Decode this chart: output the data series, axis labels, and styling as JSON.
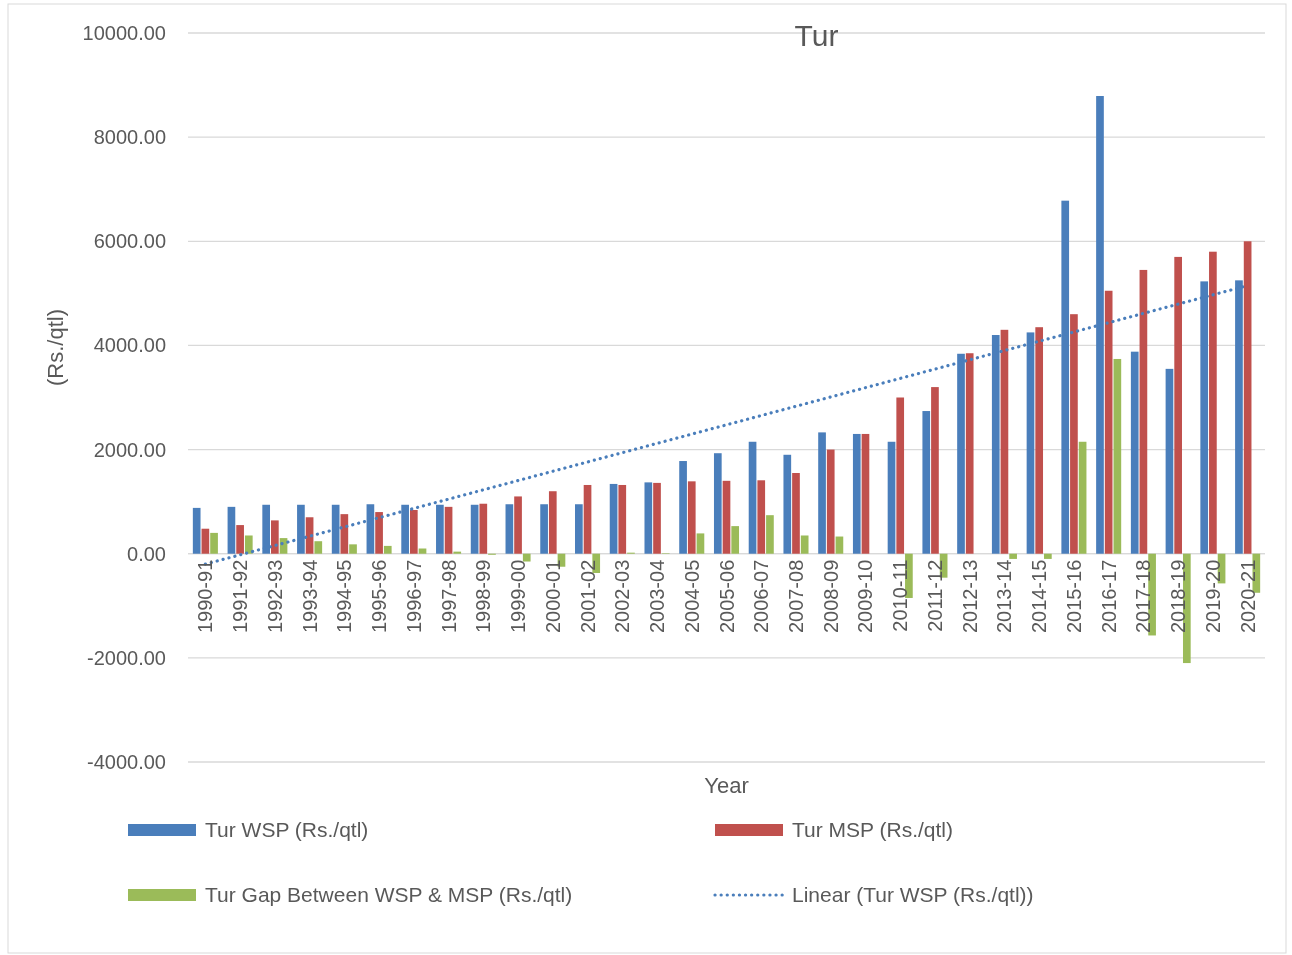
{
  "chart_data": {
    "type": "bar",
    "title": "Tur",
    "xlabel": "Year",
    "ylabel": "(Rs./qtl)",
    "categories": [
      "1990-91",
      "1991-92",
      "1992-93",
      "1993-94",
      "1994-95",
      "1995-96",
      "1996-97",
      "1997-98",
      "1998-99",
      "1999-00",
      "2000-01",
      "2001-02",
      "2002-03",
      "2003-04",
      "2004-05",
      "2005-06",
      "2006-07",
      "2007-08",
      "2008-09",
      "2009-10",
      "2010-11",
      "2011-12",
      "2012-13",
      "2013-14",
      "2014-15",
      "2015-16",
      "2016-17",
      "2017-18",
      "2018-19",
      "2019-20",
      "2020-21"
    ],
    "series": [
      {
        "name": "Tur WSP (Rs./qtl)",
        "color": "#4a7ebb",
        "values": [
          880,
          900,
          940,
          940,
          940,
          950,
          940,
          940,
          940,
          950,
          950,
          950,
          1340,
          1370,
          1780,
          1930,
          2150,
          1900,
          2330,
          2300,
          2150,
          2740,
          3840,
          4200,
          4250,
          6780,
          8790,
          3880,
          3550,
          5230,
          5250
        ]
      },
      {
        "name": "Tur MSP (Rs./qtl)",
        "color": "#c0504d",
        "values": [
          480,
          550,
          640,
          700,
          760,
          800,
          840,
          900,
          960,
          1100,
          1200,
          1320,
          1320,
          1360,
          1390,
          1400,
          1410,
          1550,
          2000,
          2300,
          3000,
          3200,
          3850,
          4300,
          4350,
          4600,
          5050,
          5450,
          5700,
          5800,
          6000
        ]
      },
      {
        "name": "Tur Gap Between WSP & MSP (Rs./qtl)",
        "color": "#9bbb59",
        "values": [
          400,
          350,
          300,
          240,
          180,
          150,
          100,
          40,
          -20,
          -150,
          -250,
          -370,
          20,
          10,
          390,
          530,
          740,
          350,
          330,
          0,
          -850,
          -460,
          null,
          -100,
          -100,
          2150,
          3740,
          -1570,
          -2100,
          -570,
          -750
        ]
      },
      {
        "name": "Linear (Tur WSP (Rs./qtl))",
        "type": "line",
        "color": "#4a7ebb",
        "line_style": "dotted",
        "x": [
          "1990-91",
          "2020-21"
        ],
        "values": [
          -200,
          5150
        ]
      }
    ],
    "ylim": [
      -4000,
      10000
    ],
    "yticks": [
      {
        "value": -4000,
        "label": "-4000.00"
      },
      {
        "value": -2000,
        "label": "-2000.00"
      },
      {
        "value": 0,
        "label": "0.00"
      },
      {
        "value": 2000,
        "label": "2000.00"
      },
      {
        "value": 4000,
        "label": "4000.00"
      },
      {
        "value": 6000,
        "label": "6000.00"
      },
      {
        "value": 8000,
        "label": "8000.00"
      },
      {
        "value": 10000,
        "label": "10000.00"
      }
    ],
    "grid": "y",
    "legend": "bottom"
  }
}
